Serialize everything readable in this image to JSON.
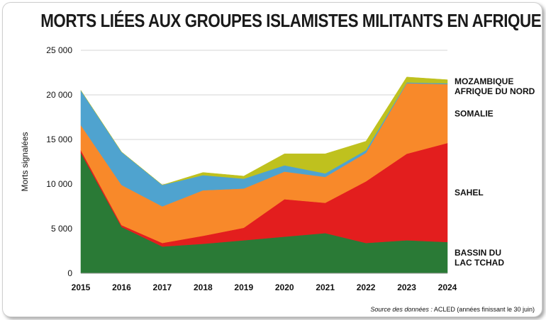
{
  "source_prefix": "Source des données :",
  "source_text": " ACLED (années finissant le 30 juin)",
  "chart_data": {
    "type": "area",
    "stacked": true,
    "title": "MORTS LIÉES AUX GROUPES ISLAMISTES MILITANTS EN AFRIQUE PAR THÉÂTRE",
    "ylabel": "Morts signalées",
    "ylim": [
      0,
      25000
    ],
    "yticks": [
      0,
      5000,
      10000,
      15000,
      20000,
      25000
    ],
    "ytick_labels": [
      "0",
      "5 000",
      "10 000",
      "15 000",
      "20 000",
      "25 000"
    ],
    "grid": true,
    "x": [
      "2015",
      "2016",
      "2017",
      "2018",
      "2019",
      "2020",
      "2021",
      "2022",
      "2023",
      "2024"
    ],
    "series": [
      {
        "name": "BASSIN DU LAC TCHAD",
        "color": "#2a7a36",
        "label_lines": [
          "BASSIN DU",
          "LAC TCHAD"
        ],
        "values": [
          13500,
          5200,
          3000,
          3300,
          3700,
          4100,
          4500,
          3400,
          3700,
          3500
        ]
      },
      {
        "name": "SAHEL",
        "color": "#e31e1e",
        "label_lines": [
          "SAHEL"
        ],
        "values": [
          300,
          200,
          400,
          900,
          1400,
          4200,
          3400,
          6900,
          9700,
          11100
        ]
      },
      {
        "name": "SOMALIE",
        "color": "#f8892a",
        "label_lines": [
          "SOMALIE"
        ],
        "values": [
          2800,
          4500,
          4100,
          5100,
          4400,
          3100,
          2900,
          3200,
          7900,
          6600
        ]
      },
      {
        "name": "AFRIQUE DU NORD",
        "color": "#4fa3cf",
        "label_lines": [
          "AFRIQUE DU NORD"
        ],
        "values": [
          3900,
          3700,
          2400,
          1700,
          1100,
          700,
          400,
          300,
          100,
          100
        ]
      },
      {
        "name": "MOZAMBIQUE",
        "color": "#bfc11e",
        "label_lines": [
          "MOZAMBIQUE"
        ],
        "values": [
          0,
          0,
          0,
          300,
          300,
          1300,
          2200,
          1000,
          600,
          400
        ]
      }
    ]
  }
}
